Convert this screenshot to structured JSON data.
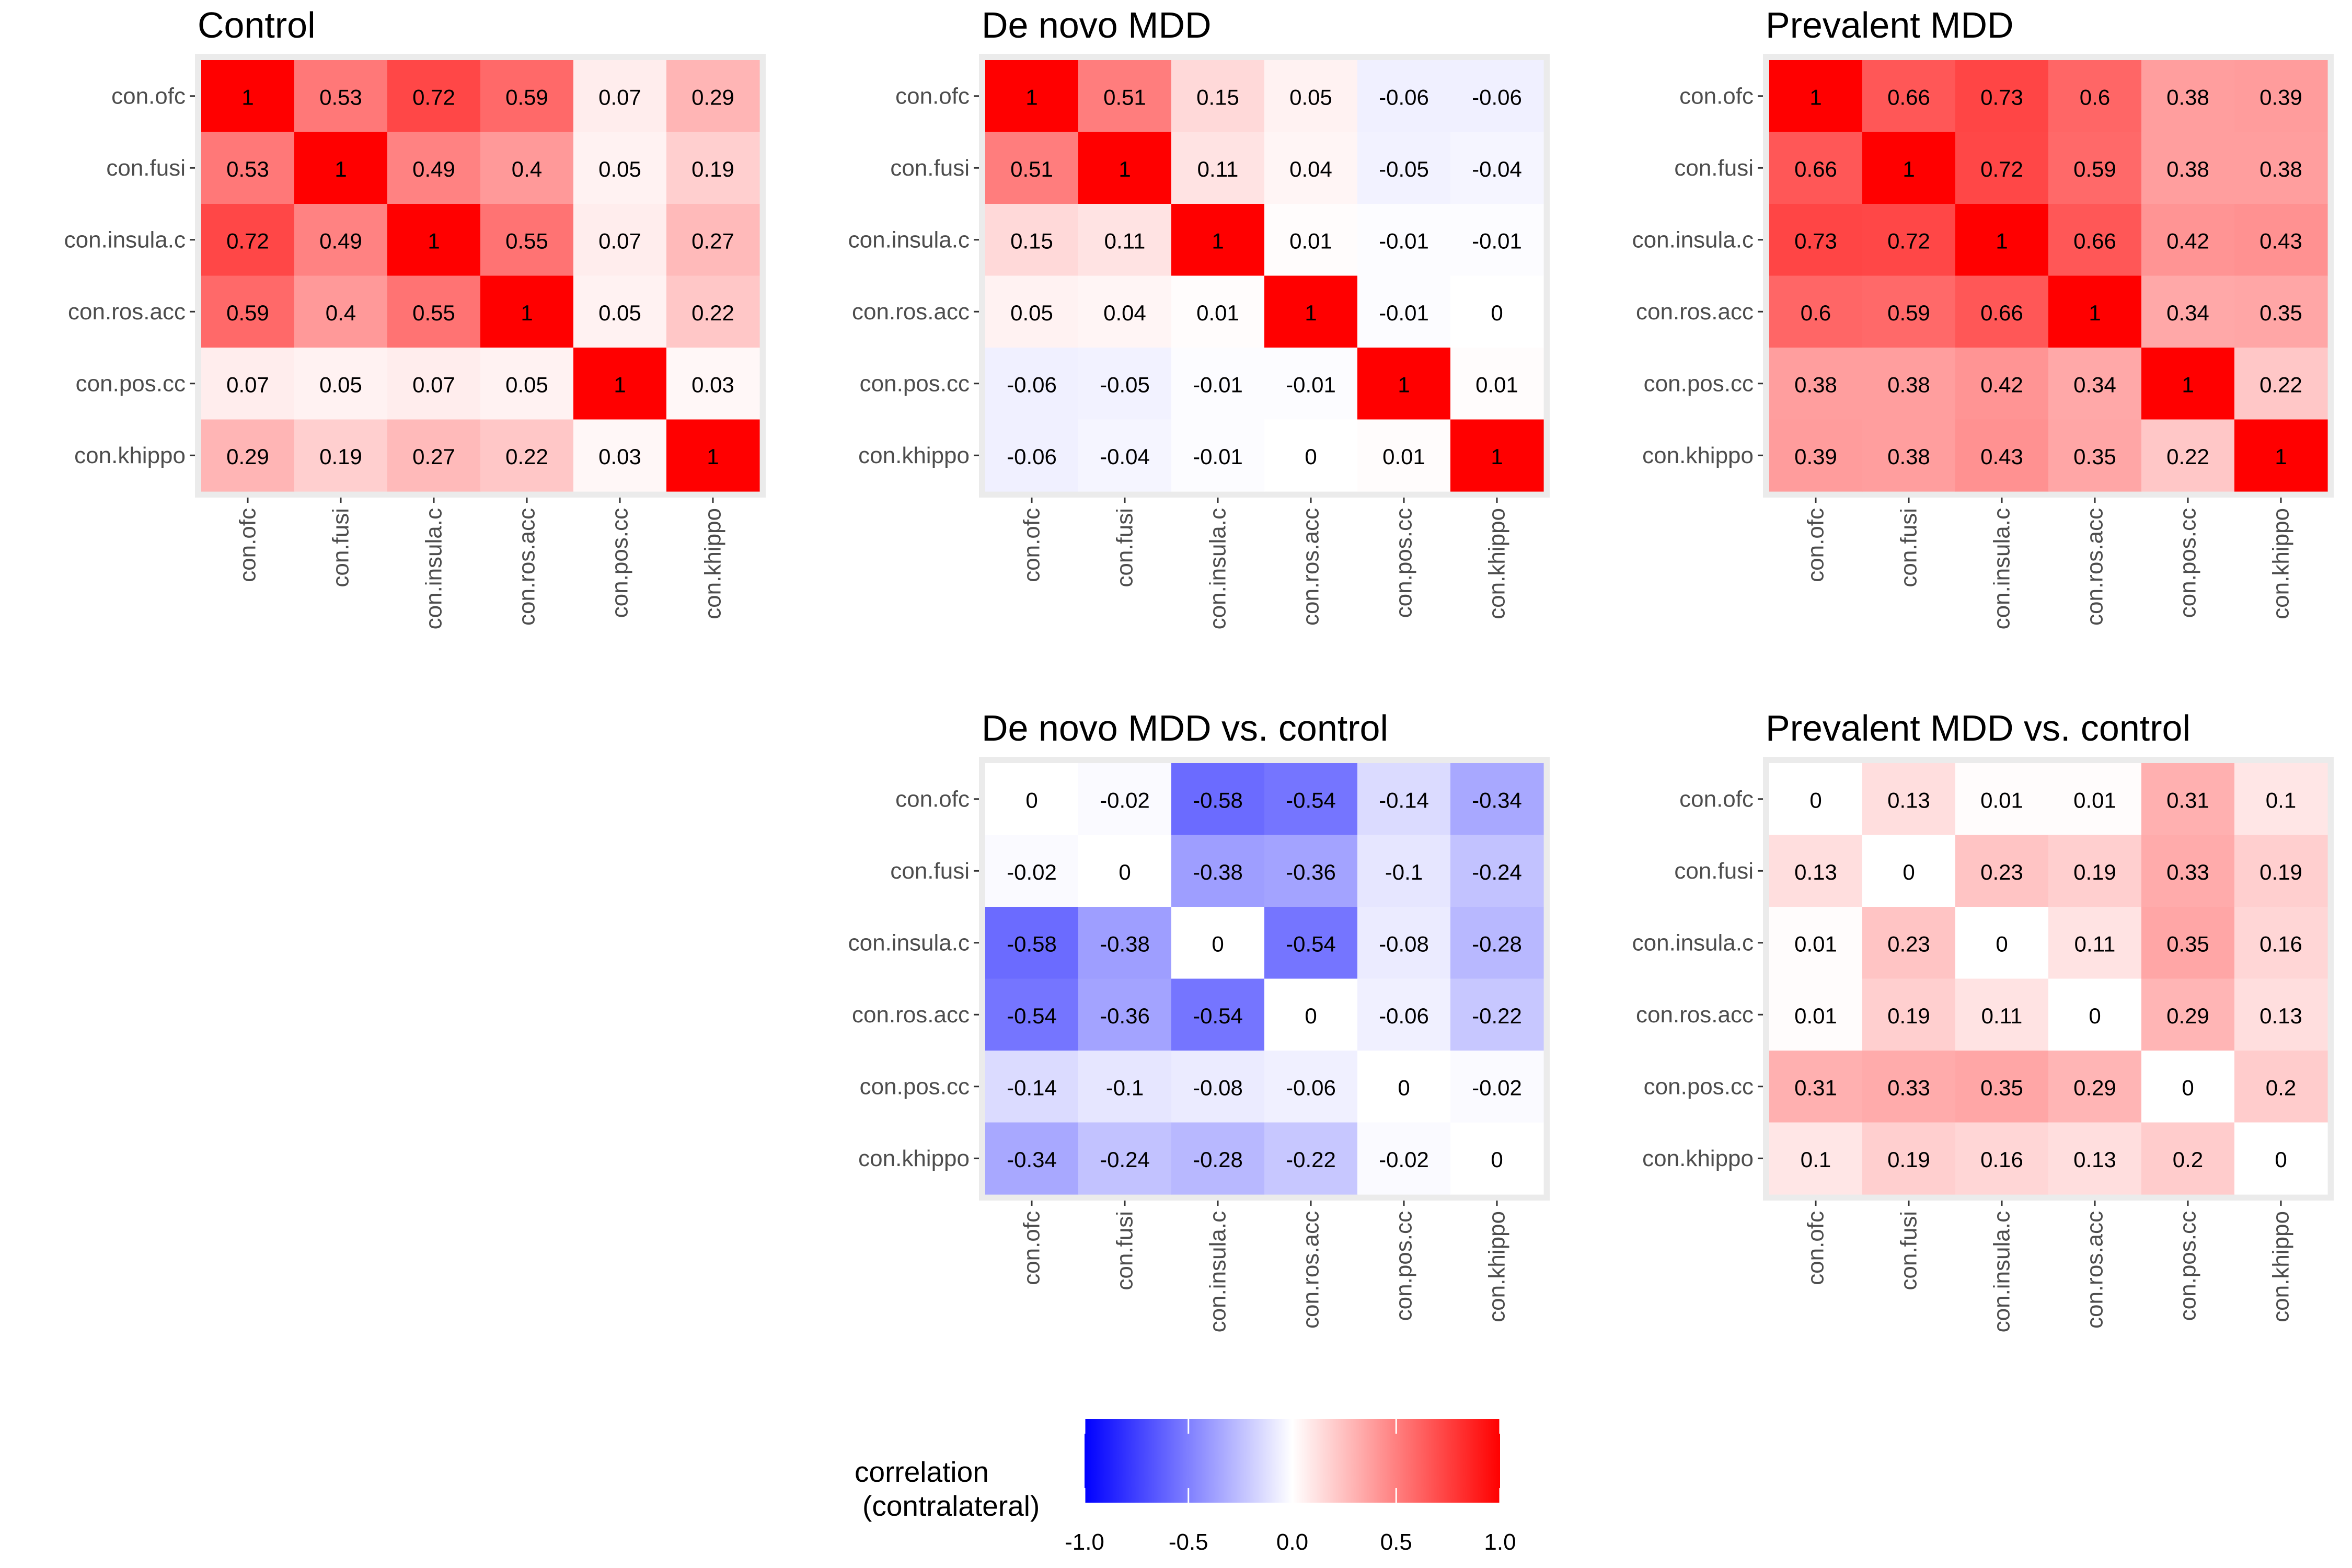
{
  "chart_data": [
    {
      "type": "heatmap",
      "title": "Control",
      "labels": [
        "con.ofc",
        "con.fusi",
        "con.insula.c",
        "con.ros.acc",
        "con.pos.cc",
        "con.khippo"
      ],
      "values": [
        [
          1,
          0.53,
          0.72,
          0.59,
          0.07,
          0.29
        ],
        [
          0.53,
          1,
          0.49,
          0.4,
          0.05,
          0.19
        ],
        [
          0.72,
          0.49,
          1,
          0.55,
          0.07,
          0.27
        ],
        [
          0.59,
          0.4,
          0.55,
          1,
          0.05,
          0.22
        ],
        [
          0.07,
          0.05,
          0.07,
          0.05,
          1,
          0.03
        ],
        [
          0.29,
          0.19,
          0.27,
          0.22,
          0.03,
          1
        ]
      ]
    },
    {
      "type": "heatmap",
      "title": "De novo MDD",
      "labels": [
        "con.ofc",
        "con.fusi",
        "con.insula.c",
        "con.ros.acc",
        "con.pos.cc",
        "con.khippo"
      ],
      "values": [
        [
          1,
          0.51,
          0.15,
          0.05,
          -0.06,
          -0.06
        ],
        [
          0.51,
          1,
          0.11,
          0.04,
          -0.05,
          -0.04
        ],
        [
          0.15,
          0.11,
          1,
          0.01,
          -0.01,
          -0.01
        ],
        [
          0.05,
          0.04,
          0.01,
          1,
          -0.01,
          0
        ],
        [
          -0.06,
          -0.05,
          -0.01,
          -0.01,
          1,
          0.01
        ],
        [
          -0.06,
          -0.04,
          -0.01,
          0,
          0.01,
          1
        ]
      ]
    },
    {
      "type": "heatmap",
      "title": "Prevalent MDD",
      "labels": [
        "con.ofc",
        "con.fusi",
        "con.insula.c",
        "con.ros.acc",
        "con.pos.cc",
        "con.khippo"
      ],
      "values": [
        [
          1,
          0.66,
          0.73,
          0.6,
          0.38,
          0.39
        ],
        [
          0.66,
          1,
          0.72,
          0.59,
          0.38,
          0.38
        ],
        [
          0.73,
          0.72,
          1,
          0.66,
          0.42,
          0.43
        ],
        [
          0.6,
          0.59,
          0.66,
          1,
          0.34,
          0.35
        ],
        [
          0.38,
          0.38,
          0.42,
          0.34,
          1,
          0.22
        ],
        [
          0.39,
          0.38,
          0.43,
          0.35,
          0.22,
          1
        ]
      ]
    },
    {
      "type": "heatmap",
      "title": "De novo MDD vs. control",
      "labels": [
        "con.ofc",
        "con.fusi",
        "con.insula.c",
        "con.ros.acc",
        "con.pos.cc",
        "con.khippo"
      ],
      "values": [
        [
          0,
          -0.02,
          -0.58,
          -0.54,
          -0.14,
          -0.34
        ],
        [
          -0.02,
          0,
          -0.38,
          -0.36,
          -0.1,
          -0.24
        ],
        [
          -0.58,
          -0.38,
          0,
          -0.54,
          -0.08,
          -0.28
        ],
        [
          -0.54,
          -0.36,
          -0.54,
          0,
          -0.06,
          -0.22
        ],
        [
          -0.14,
          -0.1,
          -0.08,
          -0.06,
          0,
          -0.02
        ],
        [
          -0.34,
          -0.24,
          -0.28,
          -0.22,
          -0.02,
          0
        ]
      ]
    },
    {
      "type": "heatmap",
      "title": "Prevalent MDD vs. control",
      "labels": [
        "con.ofc",
        "con.fusi",
        "con.insula.c",
        "con.ros.acc",
        "con.pos.cc",
        "con.khippo"
      ],
      "values": [
        [
          0,
          0.13,
          0.01,
          0.01,
          0.31,
          0.1
        ],
        [
          0.13,
          0,
          0.23,
          0.19,
          0.33,
          0.19
        ],
        [
          0.01,
          0.23,
          0,
          0.11,
          0.35,
          0.16
        ],
        [
          0.01,
          0.19,
          0.11,
          0,
          0.29,
          0.13
        ],
        [
          0.31,
          0.33,
          0.35,
          0.29,
          0,
          0.2
        ],
        [
          0.1,
          0.19,
          0.16,
          0.13,
          0.2,
          0
        ]
      ]
    }
  ],
  "legend": {
    "title_line1": "correlation",
    "title_line2": "(contralateral)",
    "range": [
      -1,
      1
    ],
    "tick_labels": [
      "-1.0",
      "-0.5",
      "0.0",
      "0.5",
      "1.0"
    ],
    "colors": {
      "low": "#0000ff",
      "mid": "#ffffff",
      "high": "#ff0000"
    }
  }
}
